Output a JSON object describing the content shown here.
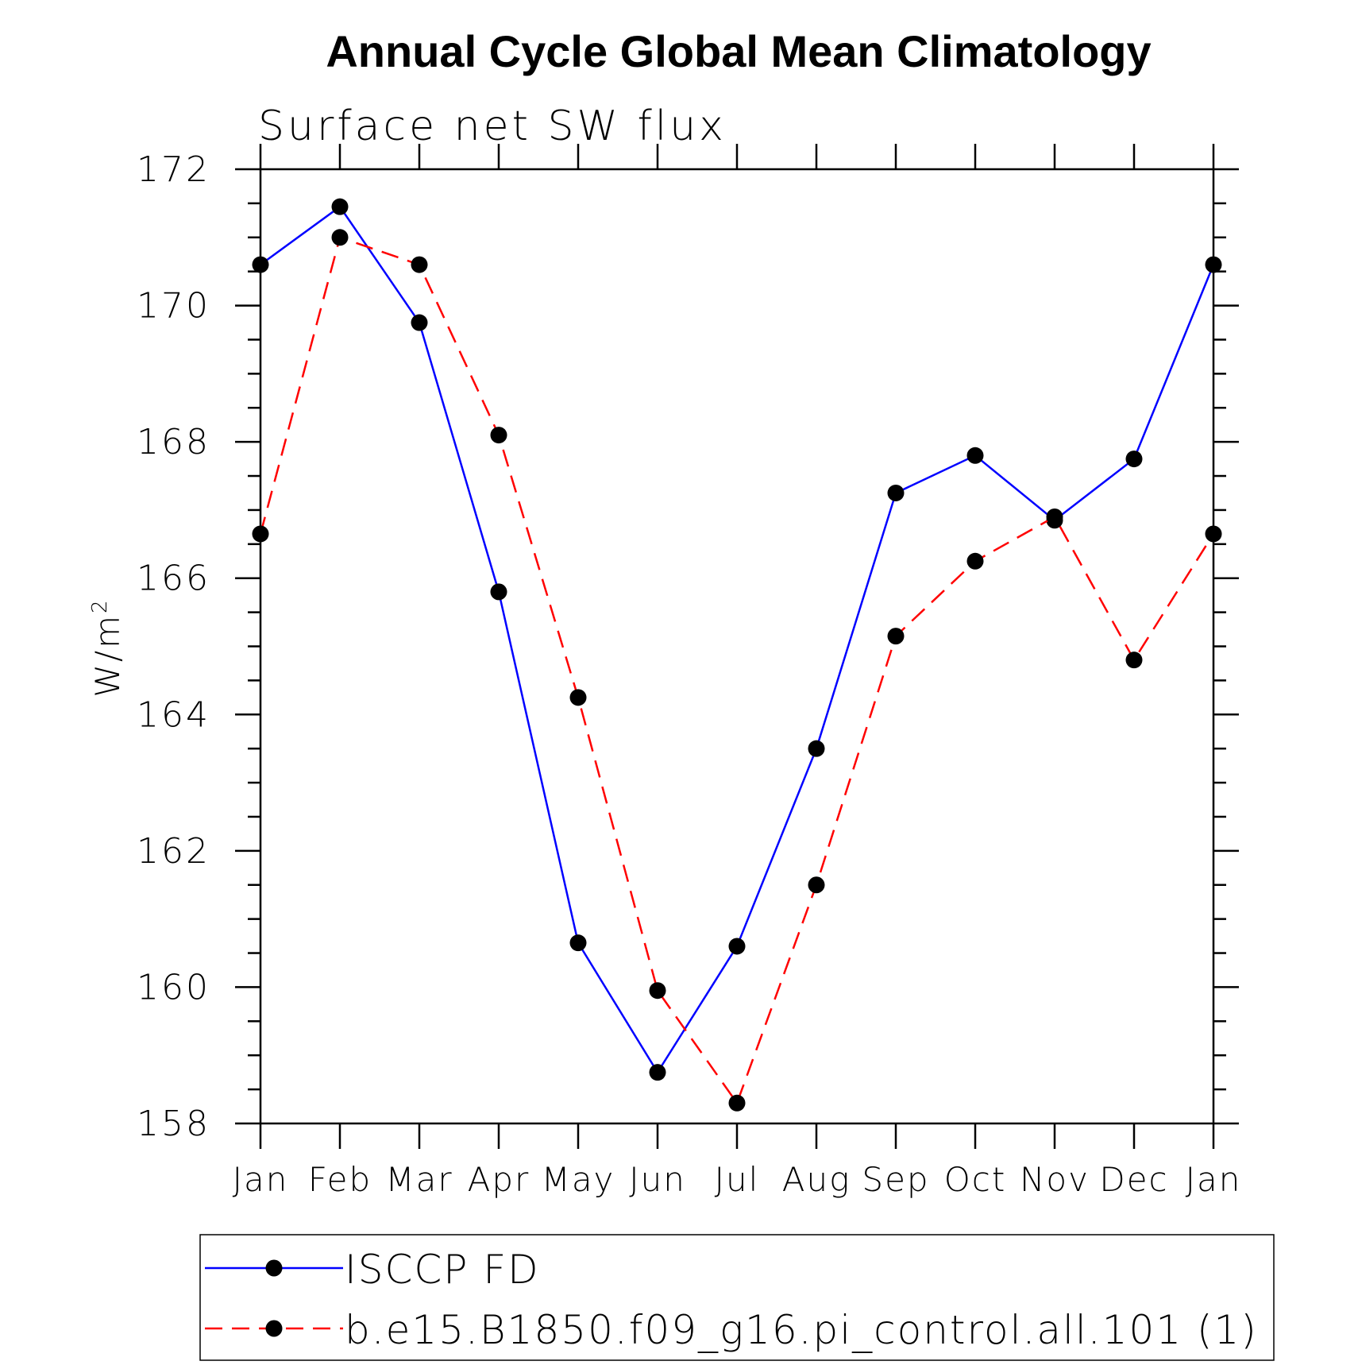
{
  "chart_data": {
    "type": "line",
    "title": "Annual Cycle Global Mean Climatology",
    "subtitle": "Surface net SW flux",
    "ylabel": "W/m",
    "ylabel_superscript": "2",
    "xlabel": "",
    "categories": [
      "Jan",
      "Feb",
      "Mar",
      "Apr",
      "May",
      "Jun",
      "Jul",
      "Aug",
      "Sep",
      "Oct",
      "Nov",
      "Dec",
      "Jan"
    ],
    "ylim": [
      158,
      172
    ],
    "yticks": [
      "158",
      "160",
      "162",
      "164",
      "166",
      "168",
      "170",
      "172"
    ],
    "legend_position": "bottom",
    "series": [
      {
        "name": "ISCCP FD",
        "color": "#0000ff",
        "style": "solid",
        "values": [
          170.6,
          171.45,
          169.75,
          165.8,
          160.65,
          158.75,
          160.6,
          163.5,
          167.25,
          167.8,
          166.85,
          167.75,
          170.6
        ]
      },
      {
        "name": "b.e15.B1850.f09_g16.pi_control.all.101 (1)",
        "color": "#ff0000",
        "style": "dashed",
        "values": [
          166.65,
          171.0,
          170.6,
          168.1,
          164.25,
          159.95,
          158.3,
          161.5,
          165.15,
          166.25,
          166.9,
          164.8,
          166.65
        ]
      }
    ]
  }
}
